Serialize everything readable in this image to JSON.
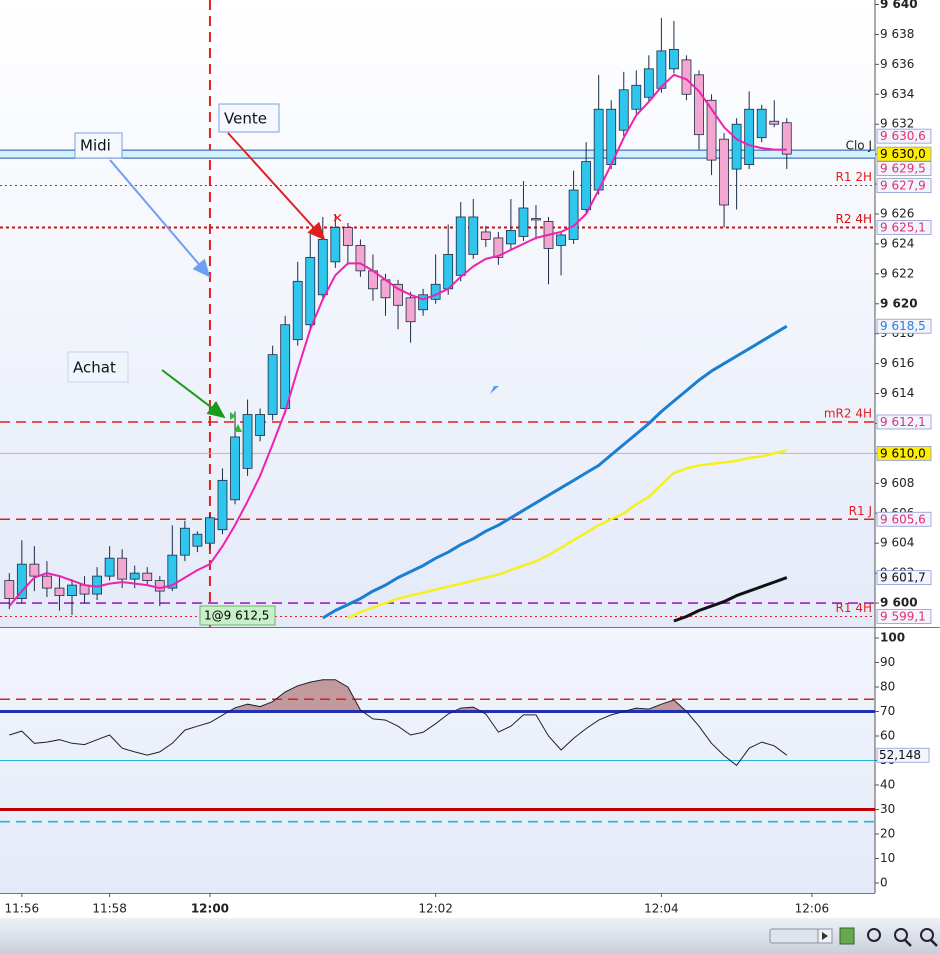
{
  "chart_data": {
    "type": "candlestick",
    "categories": [
      null,
      "11:56",
      null,
      null,
      null,
      null,
      null,
      null,
      "11:58",
      null,
      null,
      null,
      null,
      null,
      null,
      null,
      "12:00",
      null,
      null,
      null,
      null,
      null,
      null,
      null,
      null,
      null,
      null,
      null,
      null,
      null,
      null,
      null,
      null,
      null,
      "12:02",
      null,
      null,
      null,
      null,
      null,
      null,
      null,
      null,
      null,
      null,
      null,
      null,
      null,
      null,
      null,
      null,
      null,
      "12:04",
      null,
      null,
      null,
      null,
      null,
      null,
      null,
      null,
      null,
      null,
      null,
      "12:06"
    ],
    "open": [
      9601.5,
      9600.3,
      9602.6,
      9601.8,
      9601.0,
      9600.5,
      9601.2,
      9600.6,
      9601.8,
      9603.0,
      9601.6,
      9602.0,
      9601.5,
      9601.0,
      9603.2,
      9603.8,
      9604.0,
      9604.9,
      9606.9,
      9609.0,
      9611.2,
      9612.6,
      9613.0,
      9617.6,
      9618.6,
      9620.6,
      9622.8,
      9625.1,
      9623.9,
      9622.2,
      9621.6,
      9621.3,
      9620.4,
      9619.6,
      9620.3,
      9621.0,
      9621.9,
      9623.3,
      9624.8,
      9624.4,
      9624.0,
      9624.5,
      9625.7,
      9625.5,
      9623.9,
      9624.3,
      9626.3,
      9627.6,
      9629.3,
      9631.6,
      9633.0,
      9633.8,
      9634.4,
      9635.7,
      9636.3,
      9635.3,
      9633.6,
      9631.0,
      9629.0,
      9629.3,
      9631.1,
      9632.2,
      9632.1,
      null,
      null
    ],
    "high": [
      9602.0,
      9604.2,
      9603.8,
      9602.8,
      9601.8,
      9601.6,
      9601.8,
      9602.4,
      9603.8,
      9603.6,
      9602.5,
      9602.4,
      9601.8,
      9605.2,
      9605.5,
      9604.8,
      9606.0,
      9609.0,
      9612.8,
      9613.6,
      9613.0,
      9617.2,
      9619.2,
      9622.8,
      9624.8,
      9625.8,
      9626.0,
      9625.4,
      9624.3,
      9623.3,
      9622.0,
      9621.6,
      9620.8,
      9621.0,
      9623.3,
      9625.3,
      9626.8,
      9627.0,
      9625.2,
      9624.8,
      9627.0,
      9628.2,
      9626.6,
      9625.8,
      9624.8,
      9628.9,
      9630.8,
      9635.3,
      9633.6,
      9635.5,
      9635.6,
      9636.6,
      9639.1,
      9638.9,
      9636.6,
      9635.6,
      9634.0,
      9631.4,
      9632.4,
      9634.2,
      9633.3,
      9633.6,
      9632.4,
      null,
      null
    ],
    "low": [
      9599.6,
      9600.0,
      9600.8,
      9600.4,
      9599.5,
      9599.2,
      9600.0,
      9600.2,
      9601.5,
      9601.0,
      9601.0,
      9601.2,
      9599.8,
      9600.8,
      9602.8,
      9603.4,
      9603.6,
      9604.6,
      9606.6,
      9608.5,
      9610.8,
      9612.2,
      9612.6,
      9617.2,
      9618.2,
      9620.2,
      9622.4,
      9622.6,
      9621.8,
      9620.2,
      9619.2,
      9618.3,
      9617.4,
      9619.2,
      9620.0,
      9620.6,
      9621.5,
      9623.0,
      9623.8,
      9622.6,
      9623.6,
      9624.2,
      9624.3,
      9621.3,
      9621.9,
      9624.0,
      9626.0,
      9627.3,
      9629.0,
      9631.2,
      9632.7,
      9633.5,
      9634.1,
      9635.4,
      9633.6,
      9630.3,
      9628.6,
      9625.1,
      9626.3,
      9629.0,
      9630.8,
      9631.8,
      9629.0,
      null,
      null
    ],
    "close": [
      9600.3,
      9602.6,
      9601.8,
      9601.0,
      9600.5,
      9601.2,
      9600.6,
      9601.8,
      9603.0,
      9601.6,
      9602.0,
      9601.5,
      9600.8,
      9603.2,
      9605.0,
      9604.6,
      9605.7,
      9608.2,
      9611.1,
      9612.6,
      9612.6,
      9616.6,
      9618.6,
      9621.5,
      9623.1,
      9624.3,
      9625.1,
      9623.9,
      9622.2,
      9621.0,
      9620.4,
      9619.9,
      9618.8,
      9620.6,
      9621.3,
      9623.3,
      9625.8,
      9625.8,
      9624.3,
      9623.1,
      9624.9,
      9626.4,
      9625.6,
      9623.7,
      9624.6,
      9627.6,
      9629.5,
      9633.0,
      9633.0,
      9634.3,
      9634.6,
      9635.7,
      9636.9,
      9637.0,
      9634.0,
      9631.3,
      9629.6,
      9626.6,
      9632.0,
      9633.0,
      9633.0,
      9632.0,
      9630.0,
      null,
      null
    ],
    "up_color": "#2fc6ee",
    "down_color": "#f3a6d0",
    "ylim": [
      9598.4,
      9640.3
    ],
    "yticks": [
      {
        "value": 9600,
        "label": "9 600"
      },
      {
        "value": 9602,
        "label": "9 602"
      },
      {
        "value": 9604,
        "label": "9 604"
      },
      {
        "value": 9606,
        "label": "9 606"
      },
      {
        "value": 9608,
        "label": "9 608"
      },
      {
        "value": 9610,
        "label": "9 610"
      },
      {
        "value": 9612,
        "label": "9 612"
      },
      {
        "value": 9614,
        "label": "9 614"
      },
      {
        "value": 9616,
        "label": "9 616"
      },
      {
        "value": 9618,
        "label": "9 618"
      },
      {
        "value": 9620,
        "label": "9 620"
      },
      {
        "value": 9622,
        "label": "9 622"
      },
      {
        "value": 9624,
        "label": "9 624"
      },
      {
        "value": 9626,
        "label": "9 626"
      },
      {
        "value": 9628,
        "label": "9 628"
      },
      {
        "value": 9630,
        "label": "9 630"
      },
      {
        "value": 9632,
        "label": "9 632"
      },
      {
        "value": 9634,
        "label": "9 634"
      },
      {
        "value": 9636,
        "label": "9 636"
      },
      {
        "value": 9638,
        "label": "9 638"
      },
      {
        "value": 9640,
        "label": "9 640"
      }
    ],
    "lines": [
      {
        "color": "#1a7fd0",
        "width": 3,
        "values": [
          null,
          null,
          null,
          null,
          null,
          null,
          null,
          null,
          null,
          null,
          null,
          null,
          null,
          null,
          null,
          null,
          null,
          null,
          null,
          null,
          null,
          null,
          null,
          null,
          null,
          9599.0,
          9599.5,
          9599.9,
          9600.3,
          9600.8,
          9601.2,
          9601.7,
          9602.1,
          9602.5,
          9603.0,
          9603.4,
          9603.9,
          9604.3,
          9604.8,
          9605.2,
          9605.7,
          9606.2,
          9606.7,
          9607.2,
          9607.7,
          9608.2,
          9608.7,
          9609.2,
          9609.9,
          9610.6,
          9611.3,
          9612.0,
          9612.8,
          9613.5,
          9614.2,
          9614.9,
          9615.5,
          9616.0,
          9616.5,
          9617.0,
          9617.5,
          9618.0,
          9618.5,
          null,
          null
        ]
      },
      {
        "color": "#f5f020",
        "width": 2.5,
        "values": [
          null,
          null,
          null,
          null,
          null,
          null,
          null,
          null,
          null,
          null,
          null,
          null,
          null,
          null,
          null,
          null,
          null,
          null,
          null,
          null,
          null,
          null,
          null,
          null,
          null,
          null,
          null,
          9599.0,
          9599.4,
          9599.7,
          9600.0,
          9600.3,
          9600.5,
          9600.7,
          9600.9,
          9601.1,
          9601.3,
          9601.5,
          9601.7,
          9601.9,
          9602.2,
          9602.5,
          9602.8,
          9603.2,
          9603.7,
          9604.2,
          9604.7,
          9605.2,
          9605.6,
          9606.0,
          9606.6,
          9607.1,
          9607.9,
          9608.7,
          9609.0,
          9609.2,
          9609.3,
          9609.4,
          9609.5,
          9609.7,
          9609.8,
          9610.0,
          9610.2,
          null,
          null
        ]
      },
      {
        "color": "#111111",
        "width": 3,
        "values": [
          null,
          null,
          null,
          null,
          null,
          null,
          null,
          null,
          null,
          null,
          null,
          null,
          null,
          null,
          null,
          null,
          null,
          null,
          null,
          null,
          null,
          null,
          null,
          null,
          null,
          null,
          null,
          null,
          null,
          null,
          null,
          null,
          null,
          null,
          null,
          null,
          null,
          null,
          null,
          null,
          null,
          null,
          null,
          null,
          null,
          null,
          null,
          null,
          null,
          null,
          null,
          null,
          null,
          9598.8,
          9599.1,
          9599.5,
          9599.8,
          9600.1,
          9600.5,
          9600.8,
          9601.1,
          9601.4,
          9601.7,
          null,
          null
        ]
      },
      {
        "color": "#ee22b0",
        "width": 2,
        "values": [
          9599.8,
          9600.8,
          9601.7,
          9602.0,
          9601.8,
          9601.5,
          9601.2,
          9601.1,
          9601.3,
          9601.4,
          9601.3,
          9601.2,
          9601.0,
          9601.2,
          9601.7,
          9602.2,
          9602.6,
          9603.8,
          9605.2,
          9606.8,
          9608.5,
          9610.6,
          9612.8,
          9615.6,
          9618.3,
          9620.3,
          9621.9,
          9622.7,
          9622.7,
          9622.2,
          9621.6,
          9621.0,
          9620.6,
          9620.3,
          9620.6,
          9621.0,
          9621.8,
          9622.5,
          9623.0,
          9623.2,
          9623.6,
          9624.0,
          9624.4,
          9624.6,
          9624.8,
          9625.2,
          9626.0,
          9627.6,
          9629.3,
          9631.1,
          9632.6,
          9633.5,
          9634.5,
          9635.3,
          9635.0,
          9634.2,
          9633.0,
          9631.8,
          9631.0,
          9630.6,
          9630.4,
          9630.3,
          9630.3,
          null,
          null
        ]
      }
    ],
    "levels": [
      {
        "label": "Clo J",
        "value": 9630.0,
        "color": "#2050b0",
        "style": "band"
      },
      {
        "label": "R1 2H",
        "value": 9627.9,
        "color": "#e02020",
        "style": "dotted"
      },
      {
        "label": "R2 4H",
        "value": 9625.1,
        "color": "#d01010",
        "style": "dotted-thick"
      },
      {
        "label": "mR2 4H",
        "value": 9612.1,
        "color": "#e02020",
        "style": "dashed"
      },
      {
        "value": 9610.0,
        "color": "#f0a0a0",
        "style": "solid"
      },
      {
        "label": "R1 J",
        "value": 9605.6,
        "color": "#e02020",
        "style": "dashed"
      },
      {
        "value": 9600.0,
        "color": "#a020c0",
        "style": "dashed"
      },
      {
        "label": "R1 4H",
        "value": 9599.1,
        "color": "#e02020",
        "style": "dotted"
      }
    ],
    "price_labels": [
      {
        "value": 9630.6,
        "label": "9 630,6",
        "color": "#e03070",
        "fill": "#f4f4ff"
      },
      {
        "value": 9630.0,
        "label": "9 630,0",
        "color": "#000000",
        "fill": "#ffee00"
      },
      {
        "value": 9629.5,
        "label": "9 629,5",
        "color": "#e03070",
        "fill": "#f4f4ff"
      },
      {
        "value": 9627.9,
        "label": "9 627,9",
        "color": "#e03070",
        "fill": "#f4f4ff"
      },
      {
        "value": 9625.1,
        "label": "9 625,1",
        "color": "#e03070",
        "fill": "#f4f4ff"
      },
      {
        "value": 9618.5,
        "label": "9 618,5",
        "color": "#2a7fd4",
        "fill": "#f4f4ff"
      },
      {
        "value": 9612.1,
        "label": "9 612,1",
        "color": "#e03070",
        "fill": "#f4f4ff"
      },
      {
        "value": 9610.0,
        "label": "9 610,0",
        "color": "#000000",
        "fill": "#ffee00"
      },
      {
        "value": 9605.6,
        "label": "9 605,6",
        "color": "#e03070",
        "fill": "#f4f4ff"
      },
      {
        "value": 9601.7,
        "label": "9 601,7",
        "color": "#111111",
        "fill": "#f4f4ff"
      },
      {
        "value": 9599.1,
        "label": "9 599,1",
        "color": "#e03070",
        "fill": "#f4f4ff"
      }
    ],
    "annotations": {
      "midi": "Midi",
      "vente": "Vente",
      "achat": "Achat",
      "trade": "1@9 612,5"
    },
    "rsi": {
      "ylim": [
        -4.1,
        104.5
      ],
      "yticks": [
        0,
        10,
        20,
        30,
        40,
        50,
        60,
        70,
        80,
        90,
        100
      ],
      "color": "#222222",
      "fill_above": 70,
      "fill_color": "#b98a8e",
      "values": [
        60.4,
        62,
        57,
        57.5,
        58.5,
        57,
        56.5,
        58.5,
        60.4,
        55,
        53.5,
        52.2,
        53.5,
        57,
        62.4,
        64,
        65.5,
        68.5,
        71.5,
        73,
        72,
        74,
        78,
        80.5,
        82,
        83,
        83,
        80,
        70.6,
        67,
        66.5,
        64,
        60.4,
        61.5,
        65,
        69,
        71.4,
        71.8,
        69,
        61.6,
        64,
        68.6,
        68.6,
        60,
        54.3,
        59,
        63,
        66.5,
        68.6,
        70,
        71.4,
        71.0,
        73,
        74.7,
        70,
        64,
        57,
        52,
        48,
        55,
        57.5,
        56,
        52.148,
        null,
        null
      ],
      "levels": [
        {
          "value": 75,
          "color": "#e02020",
          "style": "dashed"
        },
        {
          "value": 70,
          "color": "#2030b0",
          "style": "thick"
        },
        {
          "value": 50,
          "color": "#20b8d8",
          "style": "solid"
        },
        {
          "value": 30,
          "color": "#c00000",
          "style": "thick"
        },
        {
          "value": 25,
          "color": "#20b8e0",
          "style": "dashed"
        }
      ],
      "last_label": {
        "value": 52.148,
        "label": "52,148"
      }
    }
  }
}
